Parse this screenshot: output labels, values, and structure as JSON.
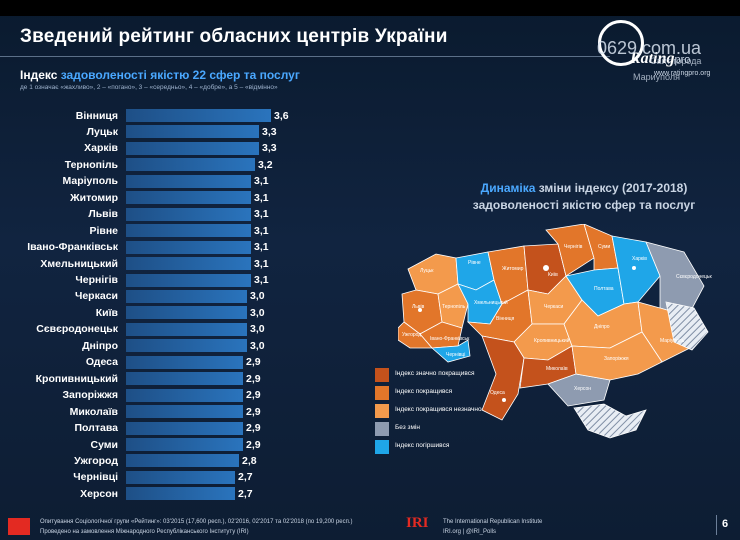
{
  "slide": {
    "title": "Зведений рейтинг обласних центрів України",
    "subtitle_prefix": "Індекс",
    "subtitle_highlight": "задоволеності якістю 22 сфер та послуг",
    "subtitle_scale": "де 1 означає «жахливо», 2 – «погано», 3 – «середньо», 4 – «добре», а 5 – «відмінно»",
    "page_number": "6"
  },
  "watermark": {
    "rating_text": "Rating",
    "rating_suffix": "pro",
    "rating_url": "www.ratingpro.org",
    "domain": "0629.com.ua",
    "city_line1": "Сайт города",
    "city_line2": "Мариуполя"
  },
  "chart_data": {
    "type": "bar",
    "orientation": "horizontal",
    "categories": [
      "Вінниця",
      "Луцьк",
      "Харків",
      "Тернопіль",
      "Маріуполь",
      "Житомир",
      "Львів",
      "Рівне",
      "Івано-Франківськ",
      "Хмельницький",
      "Чернігів",
      "Черкаси",
      "Київ",
      "Сєвєродонецьк",
      "Дніпро",
      "Одеса",
      "Кропивницький",
      "Запоріжжя",
      "Миколаїв",
      "Полтава",
      "Суми",
      "Ужгород",
      "Чернівці",
      "Херсон"
    ],
    "values": [
      3.6,
      3.3,
      3.3,
      3.2,
      3.1,
      3.1,
      3.1,
      3.1,
      3.1,
      3.1,
      3.1,
      3.0,
      3.0,
      3.0,
      3.0,
      2.9,
      2.9,
      2.9,
      2.9,
      2.9,
      2.9,
      2.8,
      2.7,
      2.7
    ],
    "value_labels": [
      "3,6",
      "3,3",
      "3,3",
      "3,2",
      "3,1",
      "3,1",
      "3,1",
      "3,1",
      "3,1",
      "3,1",
      "3,1",
      "3,0",
      "3,0",
      "3,0",
      "3,0",
      "2,9",
      "2,9",
      "2,9",
      "2,9",
      "2,9",
      "2,9",
      "2,8",
      "2,7",
      "2,7"
    ],
    "xlim": [
      0,
      3.6
    ],
    "bar_color": "#2a74bd",
    "grid": false
  },
  "map": {
    "title_prefix": "Динаміка",
    "title_highlight": "зміни індексу (2017-2018)",
    "title_line2": "задоволеності якістю сфер та послуг",
    "legend": [
      {
        "label": "Індекс значно покращився",
        "color": "#c4521c"
      },
      {
        "label": "Індекс покращився",
        "color": "#e2762a"
      },
      {
        "label": "Індекс покращився незначно",
        "color": "#f39a4c"
      },
      {
        "label": "Без змін",
        "color": "#8e9bb0"
      },
      {
        "label": "Індекс погіршився",
        "color": "#1fa6e8"
      }
    ],
    "city_labels": [
      "Луцьк",
      "Рівне",
      "Львів",
      "Житомир",
      "Київ",
      "Чернігів",
      "Суми",
      "Харків",
      "Полтава",
      "Тернопіль",
      "Хмельницький",
      "Вінниця",
      "Черкаси",
      "Кропивницький",
      "Дніпро",
      "Запоріжжя",
      "Миколаїв",
      "Одеса",
      "Херсон",
      "Сєвєродонецьк",
      "Маріуполь",
      "Ужгород",
      "Івано-Франківськ",
      "Чернівці"
    ]
  },
  "footer": {
    "source_line1": "Опитування Соціологічної групи «Рейтинг»: 03'2015 (17,600 респ.), 02'2016, 02'2017 та 02'2018 (по 19,200 респ.)",
    "source_line2": "Проведено на замовлення Міжнародного Республіканського Інституту (IRI)",
    "iri_logo": "IRI",
    "iri_line1": "The International Republican Institute",
    "iri_line2": "IRI.org | @IRI_Polls"
  }
}
